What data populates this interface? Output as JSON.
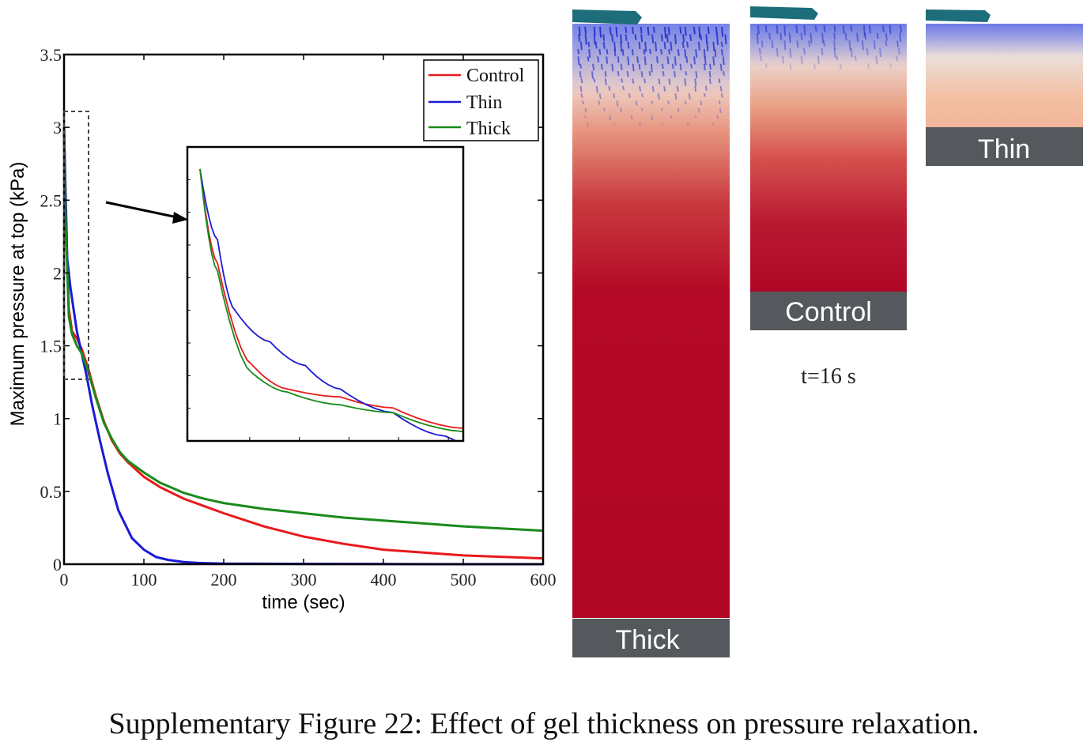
{
  "caption": "Supplementary Figure 22: Effect of gel thickness on pressure relaxation.",
  "time_label": "t=16 s",
  "chart_data": {
    "type": "line",
    "xlabel": "time (sec)",
    "ylabel": "Maximum pressure at top (kPa)",
    "xlim": [
      0,
      600
    ],
    "ylim": [
      0,
      3.5
    ],
    "xticks": [
      "0",
      "100",
      "200",
      "300",
      "400",
      "500",
      "600"
    ],
    "yticks": [
      "0",
      "0.5",
      "1",
      "1.5",
      "2",
      "2.5",
      "3",
      "3.5"
    ],
    "grid": false,
    "legend_position": "top-right",
    "series": [
      {
        "name": "Control",
        "color": "#e8191c",
        "x": [
          0,
          2,
          6,
          10,
          16,
          22,
          30,
          40,
          50,
          60,
          70,
          80,
          100,
          120,
          150,
          175,
          200,
          250,
          300,
          350,
          400,
          450,
          500,
          550,
          600
        ],
        "y": [
          3.0,
          2.4,
          1.75,
          1.6,
          1.55,
          1.48,
          1.35,
          1.15,
          0.98,
          0.85,
          0.76,
          0.7,
          0.6,
          0.53,
          0.45,
          0.4,
          0.35,
          0.26,
          0.19,
          0.14,
          0.1,
          0.08,
          0.06,
          0.05,
          0.04
        ]
      },
      {
        "name": "Thin",
        "color": "#1a1ad6",
        "x": [
          0,
          2,
          4,
          8,
          12,
          16,
          22,
          28,
          35,
          45,
          55,
          68,
          85,
          100,
          115,
          130,
          150,
          170,
          200,
          300,
          400,
          500,
          600
        ],
        "y": [
          3.0,
          2.55,
          2.1,
          1.9,
          1.75,
          1.6,
          1.45,
          1.3,
          1.1,
          0.85,
          0.62,
          0.37,
          0.18,
          0.1,
          0.05,
          0.03,
          0.015,
          0.008,
          0.004,
          0.002,
          0.001,
          0.0,
          0.0
        ]
      },
      {
        "name": "Thick",
        "color": "#1a8a1a",
        "x": [
          0,
          2,
          6,
          10,
          16,
          22,
          30,
          40,
          50,
          60,
          70,
          80,
          100,
          120,
          150,
          175,
          200,
          250,
          300,
          350,
          400,
          450,
          500,
          550,
          600
        ],
        "y": [
          3.0,
          2.35,
          1.7,
          1.58,
          1.5,
          1.45,
          1.33,
          1.14,
          0.97,
          0.86,
          0.77,
          0.71,
          0.63,
          0.56,
          0.49,
          0.45,
          0.42,
          0.38,
          0.35,
          0.32,
          0.3,
          0.28,
          0.26,
          0.245,
          0.23
        ]
      }
    ]
  },
  "panels": [
    {
      "label": "Thick"
    },
    {
      "label": "Control"
    },
    {
      "label": "Thin"
    }
  ]
}
